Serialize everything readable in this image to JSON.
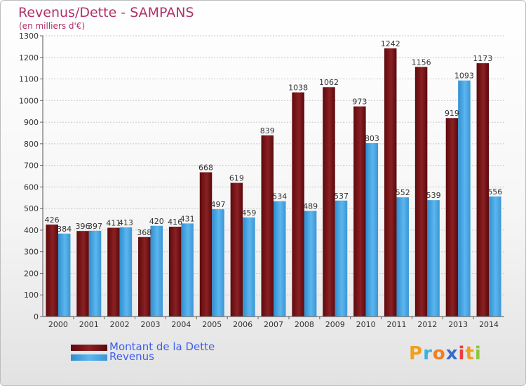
{
  "header": {
    "title": "Revenus/Dette - SAMPANS",
    "subtitle": "(en milliers d'€)"
  },
  "colors": {
    "dette": "#7a1416",
    "revenus": "#49a8e6",
    "title": "#b0306b",
    "legend_text": "#3d5ef0"
  },
  "chart_data": {
    "type": "bar",
    "categories": [
      "2000",
      "2001",
      "2002",
      "2003",
      "2004",
      "2005",
      "2006",
      "2007",
      "2008",
      "2009",
      "2010",
      "2011",
      "2012",
      "2013",
      "2014"
    ],
    "series": [
      {
        "name": "Montant de la Dette",
        "values": [
          426,
          396,
          411,
          368,
          416,
          668,
          619,
          839,
          1038,
          1062,
          973,
          1242,
          1156,
          919,
          1173
        ]
      },
      {
        "name": "Revenus",
        "values": [
          384,
          397,
          413,
          420,
          431,
          497,
          459,
          534,
          489,
          537,
          803,
          552,
          539,
          1093,
          556
        ]
      }
    ],
    "ylim": [
      0,
      1300
    ],
    "yticks": [
      0,
      100,
      200,
      300,
      400,
      500,
      600,
      700,
      800,
      900,
      1000,
      1100,
      1200,
      1300
    ],
    "grid": true,
    "legend_position": "bottom-left"
  },
  "legend": {
    "items": [
      {
        "label": "Montant de la Dette",
        "color": "#7a1416"
      },
      {
        "label": "Revenus",
        "color": "#49a8e6"
      }
    ]
  },
  "logo": {
    "letters": [
      "P",
      "r",
      "o",
      "x",
      "i",
      "t",
      "i"
    ],
    "colors": [
      "#f0a020",
      "#3fb0e0",
      "#f08020",
      "#3a6ad0",
      "#e94040",
      "#f0a020",
      "#8cc63f"
    ]
  }
}
